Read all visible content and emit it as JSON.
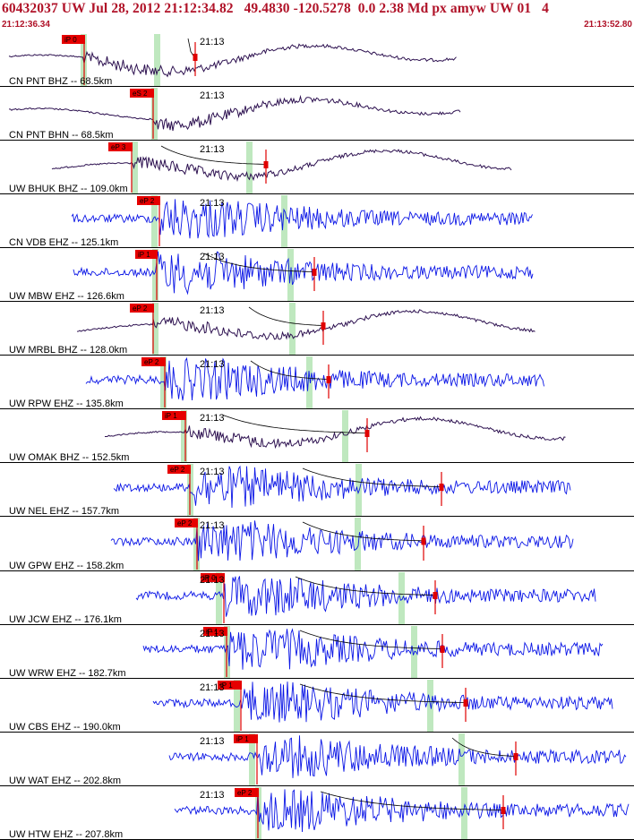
{
  "header": {
    "title": "60432037 UW Jul 28, 2012 21:12:34.82   49.4830 -120.5278  0.0 2.38 Md px amyw UW 01   4",
    "start_time": "21:12:36.34",
    "end_time": "21:13:52.80"
  },
  "minute_label": "21:13",
  "colors": {
    "header_text": "#b01228",
    "broadband_trace": "#2d1150",
    "short_period_trace": "#0b16e6",
    "pick_box": "#e60000",
    "window_band": "#bfe8bf"
  },
  "traces": [
    {
      "label": "CN PNT BHZ -- 68.5km",
      "pick": "iP 0",
      "type": "broadband"
    },
    {
      "label": "CN PNT BHN -- 68.5km",
      "pick": "eS 2",
      "type": "broadband"
    },
    {
      "label": "UW BHUK BHZ -- 109.0km",
      "pick": "eP 3",
      "type": "broadband"
    },
    {
      "label": "CN VDB EHZ -- 125.1km",
      "pick": "eP 2",
      "type": "short-period"
    },
    {
      "label": "UW MBW EHZ -- 126.6km",
      "pick": "iP 1",
      "type": "short-period"
    },
    {
      "label": "UW MRBL BHZ -- 128.0km",
      "pick": "eP 2",
      "type": "broadband"
    },
    {
      "label": "UW RPW EHZ -- 135.8km",
      "pick": "eP 2",
      "type": "short-period"
    },
    {
      "label": "UW OMAK BHZ -- 152.5km",
      "pick": "iP 1",
      "type": "broadband"
    },
    {
      "label": "UW NEL EHZ -- 157.7km",
      "pick": "eP 2",
      "type": "short-period"
    },
    {
      "label": "UW GPW EHZ -- 158.2km",
      "pick": "eP 2",
      "type": "short-period"
    },
    {
      "label": "UW JCW EHZ -- 176.1km",
      "pick": "iP 0",
      "type": "short-period"
    },
    {
      "label": "UW WRW EHZ -- 182.7km",
      "pick": "iP 1",
      "type": "short-period"
    },
    {
      "label": "UW CBS EHZ -- 190.0km",
      "pick": "iP 1",
      "type": "short-period"
    },
    {
      "label": "UW WAT EHZ -- 202.8km",
      "pick": "iP 1",
      "type": "short-period"
    },
    {
      "label": "UW HTW EHZ -- 207.8km",
      "pick": "eP 2",
      "type": "short-period"
    }
  ]
}
